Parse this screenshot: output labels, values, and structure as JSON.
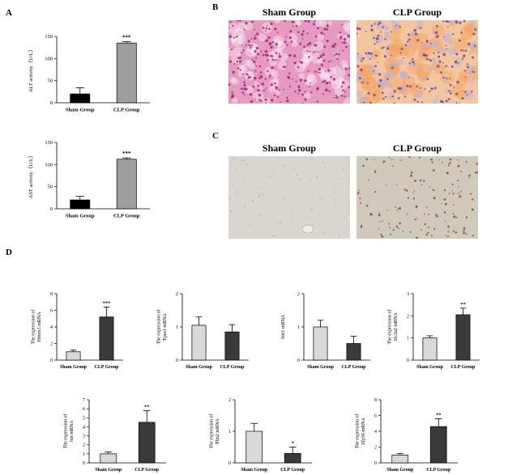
{
  "panels": {
    "a": "A",
    "b": "B",
    "c": "C",
    "d": "D"
  },
  "histology": {
    "he_sham_title": "Sham Group",
    "he_clp_title": "CLP Group",
    "ihc_sham_title": "Sham Group",
    "ihc_clp_title": "CLP Group",
    "colors": {
      "he_sham_bg": "#e79ac0",
      "he_sham_dot": "#9b2c7a",
      "he_clp_bg": "#f3c6a0",
      "he_clp_dot": "#6a4a9c",
      "ihc_bg": "#d9d6cd",
      "ihc_clp_dot": "#8b4a3a"
    }
  },
  "chart_data": [
    {
      "id": "alt",
      "type": "bar",
      "categories": [
        "Sham Group",
        "CLP Group"
      ],
      "values": [
        20,
        135
      ],
      "errors": [
        14,
        3
      ],
      "colors": [
        "#000000",
        "#9e9e9e"
      ],
      "ylabel": "ALT activity（U/L）",
      "ylim": [
        0,
        150
      ],
      "yticks": [
        0,
        50,
        100,
        150
      ],
      "significance": [
        "",
        "***"
      ]
    },
    {
      "id": "ast",
      "type": "bar",
      "categories": [
        "Sham Group",
        "CLP Group"
      ],
      "values": [
        20,
        112
      ],
      "errors": [
        8,
        3
      ],
      "colors": [
        "#000000",
        "#9e9e9e"
      ],
      "ylabel": "AST activity（U/L）",
      "ylim": [
        0,
        150
      ],
      "yticks": [
        0,
        50,
        100,
        150
      ],
      "significance": [
        "",
        "***"
      ]
    },
    {
      "id": "hmox1",
      "type": "bar",
      "categories": [
        "Sham Group",
        "CLP Group"
      ],
      "values": [
        1.0,
        5.2
      ],
      "errors": [
        0.2,
        1.2
      ],
      "colors": [
        "#d9d9d9",
        "#3a3a3a"
      ],
      "ylabel": [
        "The expression of",
        "Hmox1 mRNA"
      ],
      "ylim": [
        0,
        8
      ],
      "yticks": [
        0,
        2,
        4,
        6,
        8
      ],
      "significance": [
        "",
        "***"
      ]
    },
    {
      "id": "epas1",
      "type": "bar",
      "categories": [
        "Sham Group",
        "CLP Group"
      ],
      "values": [
        1.05,
        0.85
      ],
      "errors": [
        0.25,
        0.22
      ],
      "colors": [
        "#d9d9d9",
        "#3a3a3a"
      ],
      "ylabel": [
        "The expression of",
        "Epas1 mRNA"
      ],
      "ylim": [
        0,
        2
      ],
      "yticks": [
        0,
        1,
        2
      ],
      "significance": [
        "",
        ""
      ]
    },
    {
      "id": "sirt1",
      "type": "bar",
      "categories": [
        "Sham Group",
        "CLP Group"
      ],
      "values": [
        1.0,
        0.5
      ],
      "errors": [
        0.2,
        0.22
      ],
      "colors": [
        "#d9d9d9",
        "#3a3a3a"
      ],
      "ylabel": [
        "Sirt1 mRNA"
      ],
      "ylim": [
        0,
        2
      ],
      "yticks": [
        0,
        1,
        2
      ],
      "significance": [
        "",
        ""
      ]
    },
    {
      "id": "slc2a2",
      "type": "bar",
      "categories": [
        "Sham Group",
        "CLP Group"
      ],
      "values": [
        1.0,
        2.05
      ],
      "errors": [
        0.1,
        0.3
      ],
      "colors": [
        "#d9d9d9",
        "#3a3a3a"
      ],
      "ylabel": [
        "The expression of",
        "Slc2a2 mRNA"
      ],
      "ylim": [
        0,
        3
      ],
      "yticks": [
        0,
        1,
        2,
        3
      ],
      "significance": [
        "",
        "**"
      ]
    },
    {
      "id": "jun",
      "type": "bar",
      "categories": [
        "Sham Group",
        "CLP Group"
      ],
      "values": [
        1.0,
        4.5
      ],
      "errors": [
        0.2,
        1.3
      ],
      "colors": [
        "#d9d9d9",
        "#3a3a3a"
      ],
      "ylabel": [
        "The expression of",
        "Jun mRNA"
      ],
      "ylim": [
        0,
        7
      ],
      "yticks": [
        0,
        1,
        2,
        3,
        4,
        5,
        6,
        7
      ],
      "significance": [
        "",
        "**"
      ]
    },
    {
      "id": "plin2",
      "type": "bar",
      "categories": [
        "Sham Group",
        "CLP Group"
      ],
      "values": [
        1.0,
        0.3
      ],
      "errors": [
        0.25,
        0.2
      ],
      "colors": [
        "#d9d9d9",
        "#3a3a3a"
      ],
      "ylabel": [
        "The expression of",
        "Plin2 mRNA"
      ],
      "ylim": [
        0,
        2
      ],
      "yticks": [
        0,
        1,
        2
      ],
      "significance": [
        "",
        "*"
      ]
    },
    {
      "id": "zfp36",
      "type": "bar",
      "categories": [
        "Sham Group",
        "CLP Group"
      ],
      "values": [
        1.0,
        4.6
      ],
      "errors": [
        0.2,
        1.0
      ],
      "colors": [
        "#d9d9d9",
        "#3a3a3a"
      ],
      "ylabel": [
        "The expression of",
        "Zfp36 mRNA"
      ],
      "ylim": [
        0,
        8
      ],
      "yticks": [
        0,
        2,
        4,
        6,
        8
      ],
      "significance": [
        "",
        "**"
      ]
    }
  ]
}
